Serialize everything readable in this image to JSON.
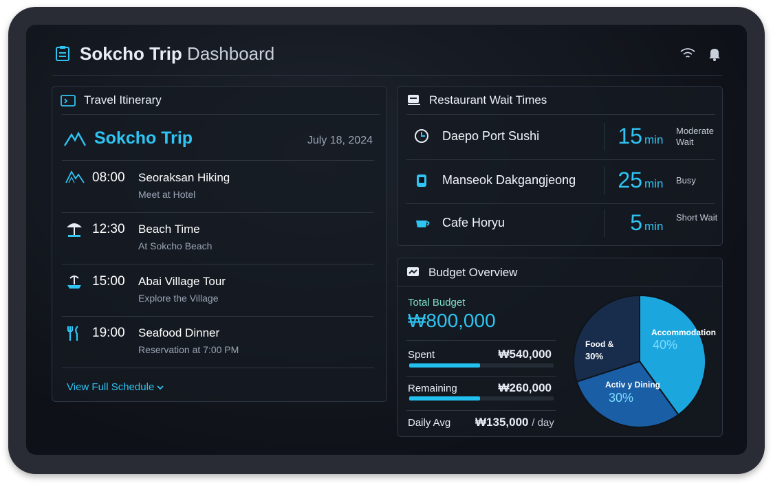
{
  "header": {
    "title_strong": "Sokcho Trip",
    "title_rest": "Dashboard"
  },
  "itinerary": {
    "title": "Travel Itinerary",
    "trip": "Sokcho Trip",
    "date": "July 18, 2024",
    "items": [
      {
        "time": "08:00",
        "title": "Seoraksan Hiking",
        "detail": "Meet at Hotel"
      },
      {
        "time": "12:30",
        "title": "Beach Time",
        "detail": "At Sokcho Beach"
      },
      {
        "time": "15:00",
        "title": "Abai Village Tour",
        "detail": "Explore the Village"
      },
      {
        "time": "19:00",
        "title": "Seafood Dinner",
        "detail": "Reservation at 7:00 PM"
      }
    ],
    "link": "View Full Schedule"
  },
  "restaurants": {
    "title": "Restaurant Wait Times",
    "items": [
      {
        "name": "Daepo Port Sushi",
        "wait": 15,
        "unit": "min",
        "status": "Moderate Wait"
      },
      {
        "name": "Manseok Dakgangjeong",
        "wait": 25,
        "unit": "min",
        "status": "Busy"
      },
      {
        "name": "Cafe Horyu",
        "wait": 5,
        "unit": "min",
        "status": "Short Wait"
      }
    ]
  },
  "budget": {
    "title": "Budget Overview",
    "total_label": "Total Budget",
    "total": "₩800,000",
    "rows": [
      {
        "label": "Spent",
        "value": "₩540,000"
      },
      {
        "label": "Remaining",
        "value": "₩260,000"
      }
    ],
    "daily_label": "Daily Avg",
    "daily": "₩135,000",
    "daily_unit": "/ day"
  },
  "chart_data": {
    "type": "pie",
    "categories": [
      "Accommodation",
      "Activ y Dining",
      "Food &"
    ],
    "values": [
      40,
      30,
      30
    ],
    "value_labels": [
      "40%",
      "30%",
      "30%"
    ],
    "colors": [
      "#1ba6dd",
      "#1a5ea6",
      "#182d4c"
    ]
  }
}
